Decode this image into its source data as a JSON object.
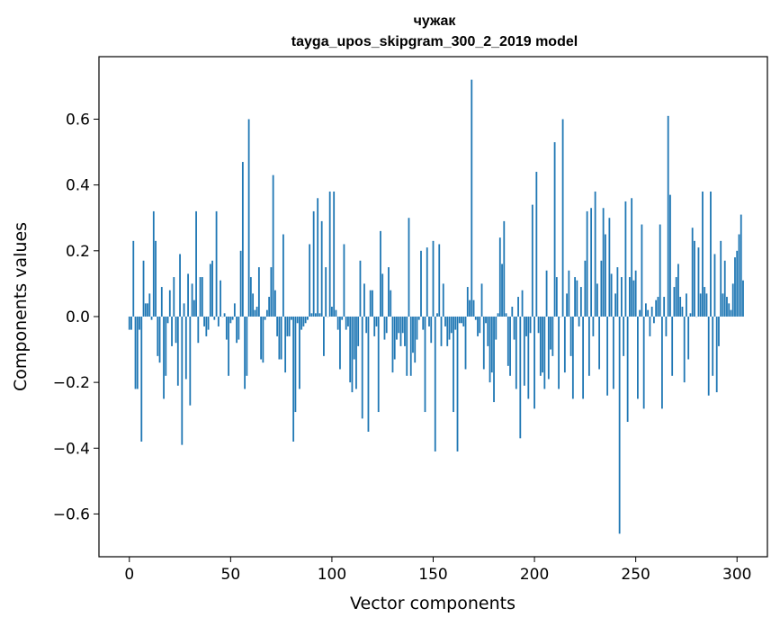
{
  "chart_data": {
    "type": "bar",
    "title": "чужак",
    "subtitle": "tayga_upos_skipgram_300_2_2019 model",
    "xlabel": "Vector components",
    "ylabel": "Components values",
    "xlim": [
      -15,
      315
    ],
    "ylim": [
      -0.73,
      0.79
    ],
    "xticks": [
      0,
      50,
      100,
      150,
      200,
      250,
      300
    ],
    "yticks": [
      -0.6,
      -0.4,
      -0.2,
      0.0,
      0.2,
      0.4,
      0.6
    ],
    "ytick_labels": [
      "−0.6",
      "−0.4",
      "−0.2",
      "0.0",
      "0.2",
      "0.4",
      "0.6"
    ],
    "bar_color": "#1f77b4",
    "values": [
      -0.04,
      -0.04,
      0.23,
      -0.22,
      -0.22,
      -0.04,
      -0.38,
      0.17,
      0.04,
      0.04,
      0.07,
      -0.01,
      0.32,
      0.23,
      -0.12,
      -0.14,
      0.09,
      -0.25,
      -0.18,
      -0.02,
      0.08,
      -0.09,
      0.12,
      -0.08,
      -0.21,
      0.19,
      -0.39,
      0.04,
      -0.19,
      0.13,
      -0.27,
      0.1,
      0.05,
      0.32,
      -0.08,
      0.12,
      0.12,
      -0.03,
      -0.06,
      -0.04,
      0.16,
      0.17,
      -0.01,
      0.32,
      -0.03,
      0.11,
      0.0,
      0.01,
      -0.07,
      -0.18,
      -0.02,
      -0.01,
      0.04,
      -0.08,
      -0.07,
      0.2,
      0.47,
      -0.22,
      -0.18,
      0.6,
      0.12,
      0.07,
      0.02,
      0.03,
      0.15,
      -0.13,
      -0.14,
      -0.01,
      0.02,
      0.06,
      0.15,
      0.43,
      0.08,
      -0.06,
      -0.13,
      -0.13,
      0.25,
      -0.17,
      -0.06,
      -0.06,
      -0.01,
      -0.38,
      -0.29,
      -0.02,
      -0.22,
      -0.04,
      -0.03,
      -0.02,
      -0.01,
      0.22,
      0.01,
      0.32,
      0.01,
      0.36,
      0.01,
      0.29,
      -0.12,
      0.15,
      0.0,
      0.38,
      0.03,
      0.38,
      0.02,
      -0.04,
      -0.16,
      -0.01,
      0.22,
      -0.04,
      -0.03,
      -0.2,
      -0.23,
      -0.13,
      -0.22,
      -0.09,
      0.17,
      -0.31,
      0.1,
      -0.05,
      -0.35,
      0.08,
      0.08,
      -0.06,
      -0.03,
      -0.29,
      0.26,
      0.13,
      -0.07,
      -0.05,
      0.15,
      0.08,
      -0.17,
      -0.13,
      -0.07,
      -0.05,
      -0.09,
      -0.05,
      -0.09,
      -0.18,
      0.3,
      -0.18,
      -0.11,
      -0.14,
      -0.07,
      -0.01,
      0.2,
      -0.04,
      -0.29,
      0.21,
      -0.03,
      -0.08,
      0.23,
      -0.41,
      0.01,
      0.22,
      -0.09,
      0.1,
      -0.03,
      -0.09,
      -0.07,
      -0.05,
      -0.29,
      -0.04,
      -0.41,
      -0.02,
      -0.02,
      -0.03,
      -0.16,
      0.09,
      0.05,
      0.72,
      0.05,
      -0.01,
      -0.06,
      -0.05,
      0.1,
      -0.16,
      -0.02,
      -0.09,
      -0.2,
      -0.17,
      -0.26,
      -0.07,
      0.01,
      0.24,
      0.16,
      0.29,
      0.01,
      -0.15,
      -0.18,
      0.03,
      -0.07,
      -0.22,
      0.06,
      -0.37,
      0.08,
      -0.21,
      -0.06,
      -0.25,
      -0.05,
      0.34,
      -0.28,
      0.44,
      -0.05,
      -0.18,
      -0.17,
      -0.22,
      0.14,
      -0.19,
      -0.1,
      -0.12,
      0.53,
      0.12,
      -0.22,
      0.0,
      0.6,
      -0.17,
      0.07,
      0.14,
      -0.12,
      -0.25,
      0.12,
      0.11,
      -0.03,
      0.09,
      -0.25,
      0.17,
      0.32,
      -0.18,
      0.33,
      -0.06,
      0.38,
      0.1,
      -0.16,
      0.17,
      0.33,
      0.25,
      -0.24,
      0.3,
      0.13,
      -0.22,
      0.07,
      0.15,
      -0.66,
      0.12,
      -0.12,
      0.35,
      -0.32,
      0.12,
      0.36,
      0.11,
      0.14,
      -0.25,
      0.02,
      0.28,
      -0.28,
      0.04,
      0.02,
      -0.06,
      0.03,
      -0.02,
      0.05,
      0.06,
      0.28,
      -0.28,
      0.06,
      -0.06,
      0.61,
      0.37,
      -0.18,
      0.09,
      0.12,
      0.16,
      0.06,
      0.03,
      -0.2,
      0.07,
      -0.13,
      0.01,
      0.27,
      0.23,
      0.0,
      0.21,
      0.07,
      0.38,
      0.09,
      0.07,
      -0.24,
      0.38,
      -0.18,
      0.19,
      -0.23,
      -0.09,
      0.23,
      0.07,
      0.17,
      0.06,
      0.04,
      0.02,
      0.1,
      0.18,
      0.2,
      0.25,
      0.31,
      0.11
    ]
  }
}
